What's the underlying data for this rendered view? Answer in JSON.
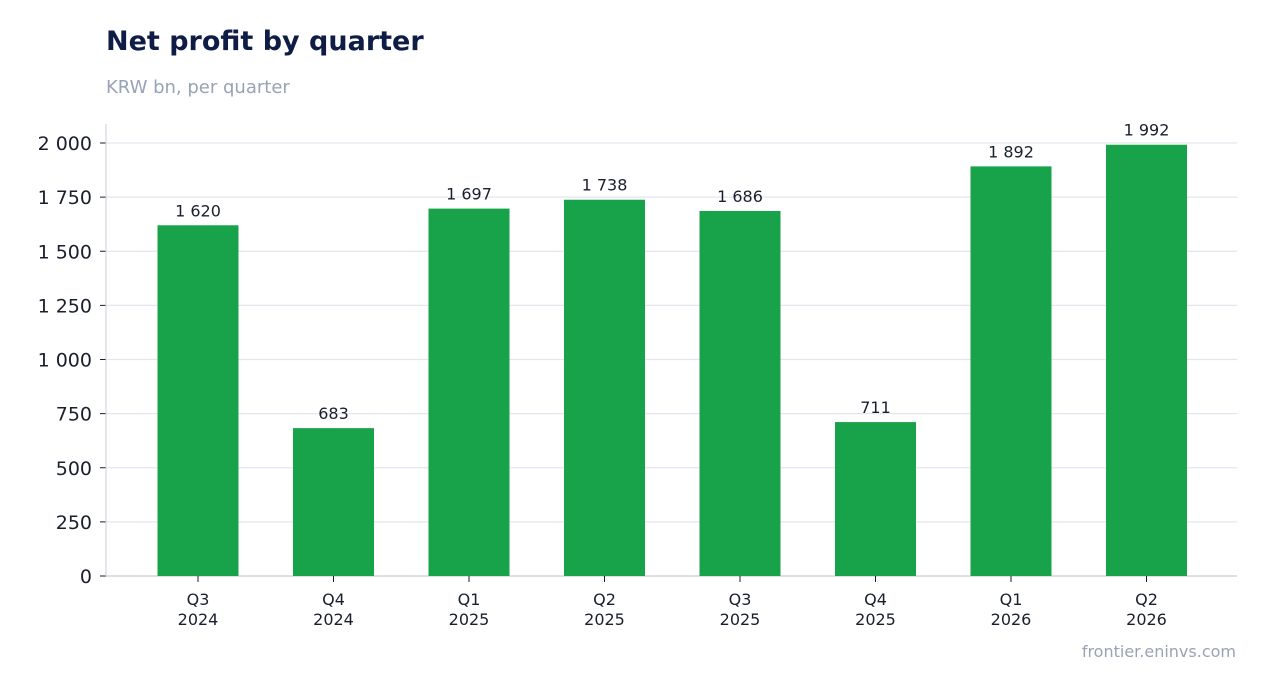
{
  "header": {
    "title": "Net profit by quarter",
    "subtitle": "KRW bn, per quarter"
  },
  "footer": {
    "source": "frontier.eninvs.com"
  },
  "colors": {
    "bar": "#18a34a",
    "grid": "#e2e6ef",
    "axis": "#c9ced8",
    "text": "#1a1f2e"
  },
  "chart_data": {
    "type": "bar",
    "title": "Net profit by quarter",
    "subtitle": "KRW bn, per quarter",
    "xlabel": "",
    "ylabel": "",
    "ylim": [
      0,
      2000
    ],
    "yticks": [
      0,
      250,
      500,
      750,
      1000,
      1250,
      1500,
      1750,
      2000
    ],
    "ytick_labels": [
      "0",
      "250",
      "500",
      "750",
      "1 000",
      "1 250",
      "1 500",
      "1 750",
      "2 000"
    ],
    "grid": true,
    "categories": [
      [
        "Q3",
        "2024"
      ],
      [
        "Q4",
        "2024"
      ],
      [
        "Q1",
        "2025"
      ],
      [
        "Q2",
        "2025"
      ],
      [
        "Q3",
        "2025"
      ],
      [
        "Q4",
        "2025"
      ],
      [
        "Q1",
        "2026"
      ],
      [
        "Q2",
        "2026"
      ]
    ],
    "values": [
      1620,
      683,
      1697,
      1738,
      1686,
      711,
      1892,
      1992
    ],
    "value_labels": [
      "1 620",
      "683",
      "1 697",
      "1 738",
      "1 686",
      "711",
      "1 892",
      "1 992"
    ]
  }
}
